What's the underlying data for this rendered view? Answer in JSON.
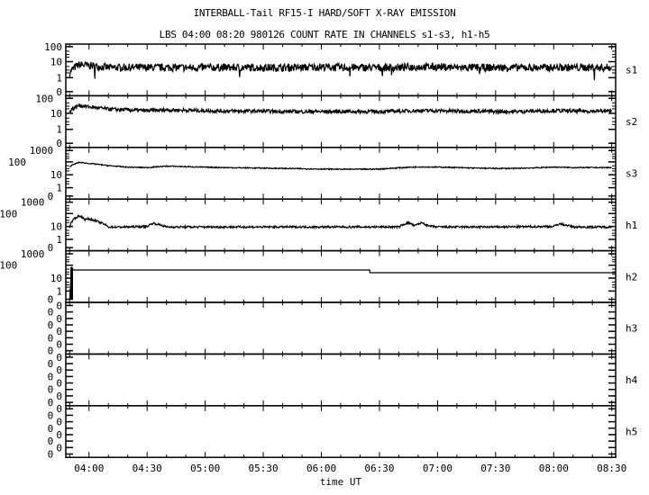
{
  "title": "INTERBALL-Tail RF15-I HARD/SOFT X-RAY EMISSION",
  "subtitle": "LBS 04:00 08:20 980126  COUNT RATE IN CHANNELS s1-s3, h1-h5",
  "chart_data": {
    "type": "line",
    "xlabel": "time UT",
    "xlim": [
      "03:48",
      "08:32"
    ],
    "xticks": [
      "04:00",
      "04:30",
      "05:00",
      "05:30",
      "06:00",
      "06:30",
      "07:00",
      "07:30",
      "08:00",
      "08:30"
    ],
    "yscale": "log",
    "grid": false,
    "panels": [
      {
        "name": "s1",
        "yticks": [
          "100",
          "10",
          "1",
          "0"
        ],
        "times": [
          "03:50",
          "03:55",
          "04:00",
          "04:10",
          "04:20",
          "04:30",
          "04:40",
          "04:50",
          "05:00",
          "05:10",
          "05:20",
          "05:30",
          "05:40",
          "05:50",
          "06:00",
          "06:10",
          "06:20",
          "06:30",
          "06:40",
          "06:50",
          "07:00",
          "07:10",
          "07:20",
          "07:30",
          "07:40",
          "07:50",
          "08:00",
          "08:10",
          "08:20",
          "08:30"
        ],
        "values": [
          2,
          7,
          6,
          4.5,
          4.5,
          4.5,
          4.5,
          4.5,
          4.5,
          4.5,
          4.5,
          4.5,
          4.5,
          4.5,
          5,
          4.5,
          4.5,
          4.5,
          4.5,
          5,
          5,
          4.5,
          4.5,
          4.5,
          4.5,
          4.5,
          4.5,
          4.5,
          4.5,
          4.5
        ]
      },
      {
        "name": "s2",
        "yticks": [
          "100",
          "10",
          "1",
          "0"
        ],
        "times": [
          "03:50",
          "03:55",
          "04:00",
          "04:10",
          "04:20",
          "04:30",
          "04:40",
          "04:50",
          "05:00",
          "05:10",
          "05:20",
          "05:30",
          "05:40",
          "05:50",
          "06:00",
          "06:10",
          "06:20",
          "06:30",
          "06:40",
          "06:50",
          "07:00",
          "07:10",
          "07:20",
          "07:30",
          "07:40",
          "07:50",
          "08:00",
          "08:10",
          "08:20",
          "08:30"
        ],
        "values": [
          15,
          35,
          28,
          20,
          18,
          16,
          18,
          17,
          16,
          15,
          15,
          15,
          14,
          14,
          14,
          14,
          14,
          14,
          15,
          16,
          16,
          15,
          15,
          14,
          14,
          15,
          16,
          15,
          15,
          15
        ]
      },
      {
        "name": "s3",
        "yticks": [
          "1000",
          "100",
          "10",
          "1",
          "0"
        ],
        "times": [
          "03:50",
          "03:55",
          "04:00",
          "04:10",
          "04:20",
          "04:30",
          "04:40",
          "04:50",
          "05:00",
          "05:10",
          "05:20",
          "05:30",
          "05:40",
          "05:50",
          "06:00",
          "06:10",
          "06:20",
          "06:30",
          "06:40",
          "06:50",
          "07:00",
          "07:10",
          "07:20",
          "07:30",
          "07:40",
          "07:50",
          "08:00",
          "08:10",
          "08:20",
          "08:30"
        ],
        "values": [
          50,
          110,
          90,
          60,
          45,
          42,
          55,
          50,
          45,
          42,
          40,
          38,
          36,
          34,
          32,
          31,
          31,
          32,
          40,
          48,
          46,
          42,
          38,
          36,
          36,
          40,
          46,
          42,
          42,
          42
        ]
      },
      {
        "name": "h1",
        "yticks": [
          "1000",
          "100",
          "10",
          "1",
          "0"
        ],
        "times": [
          "03:50",
          "03:55",
          "03:58",
          "04:00",
          "04:05",
          "04:10",
          "04:20",
          "04:30",
          "04:33",
          "04:40",
          "05:00",
          "05:30",
          "06:00",
          "06:30",
          "06:40",
          "06:45",
          "06:48",
          "06:52",
          "06:55",
          "07:00",
          "07:30",
          "08:00",
          "08:03",
          "08:10",
          "08:30"
        ],
        "values": [
          10,
          80,
          40,
          45,
          25,
          10,
          10,
          11,
          20,
          10,
          10,
          10,
          10,
          10,
          10,
          22,
          12,
          22,
          12,
          10,
          10,
          11,
          18,
          10,
          10
        ]
      },
      {
        "name": "h2",
        "yticks": [
          "1000",
          "100",
          "10",
          "1",
          "0"
        ],
        "times": [
          "03:50",
          "03:51",
          "03:52",
          "06:25",
          "06:25",
          "08:32"
        ],
        "values": [
          0,
          80,
          50,
          50,
          30,
          30
        ]
      },
      {
        "name": "h3",
        "yticks": [
          "0",
          "0",
          "0",
          "0",
          "0",
          "0",
          "0",
          "0"
        ],
        "times": [],
        "values": []
      },
      {
        "name": "h4",
        "yticks": [
          "0",
          "0",
          "0",
          "0",
          "0",
          "0",
          "0",
          "0"
        ],
        "times": [],
        "values": []
      },
      {
        "name": "h5",
        "yticks": [
          "0",
          "0",
          "0",
          "0",
          "0",
          "0",
          "0",
          "0"
        ],
        "times": [],
        "values": []
      }
    ]
  }
}
